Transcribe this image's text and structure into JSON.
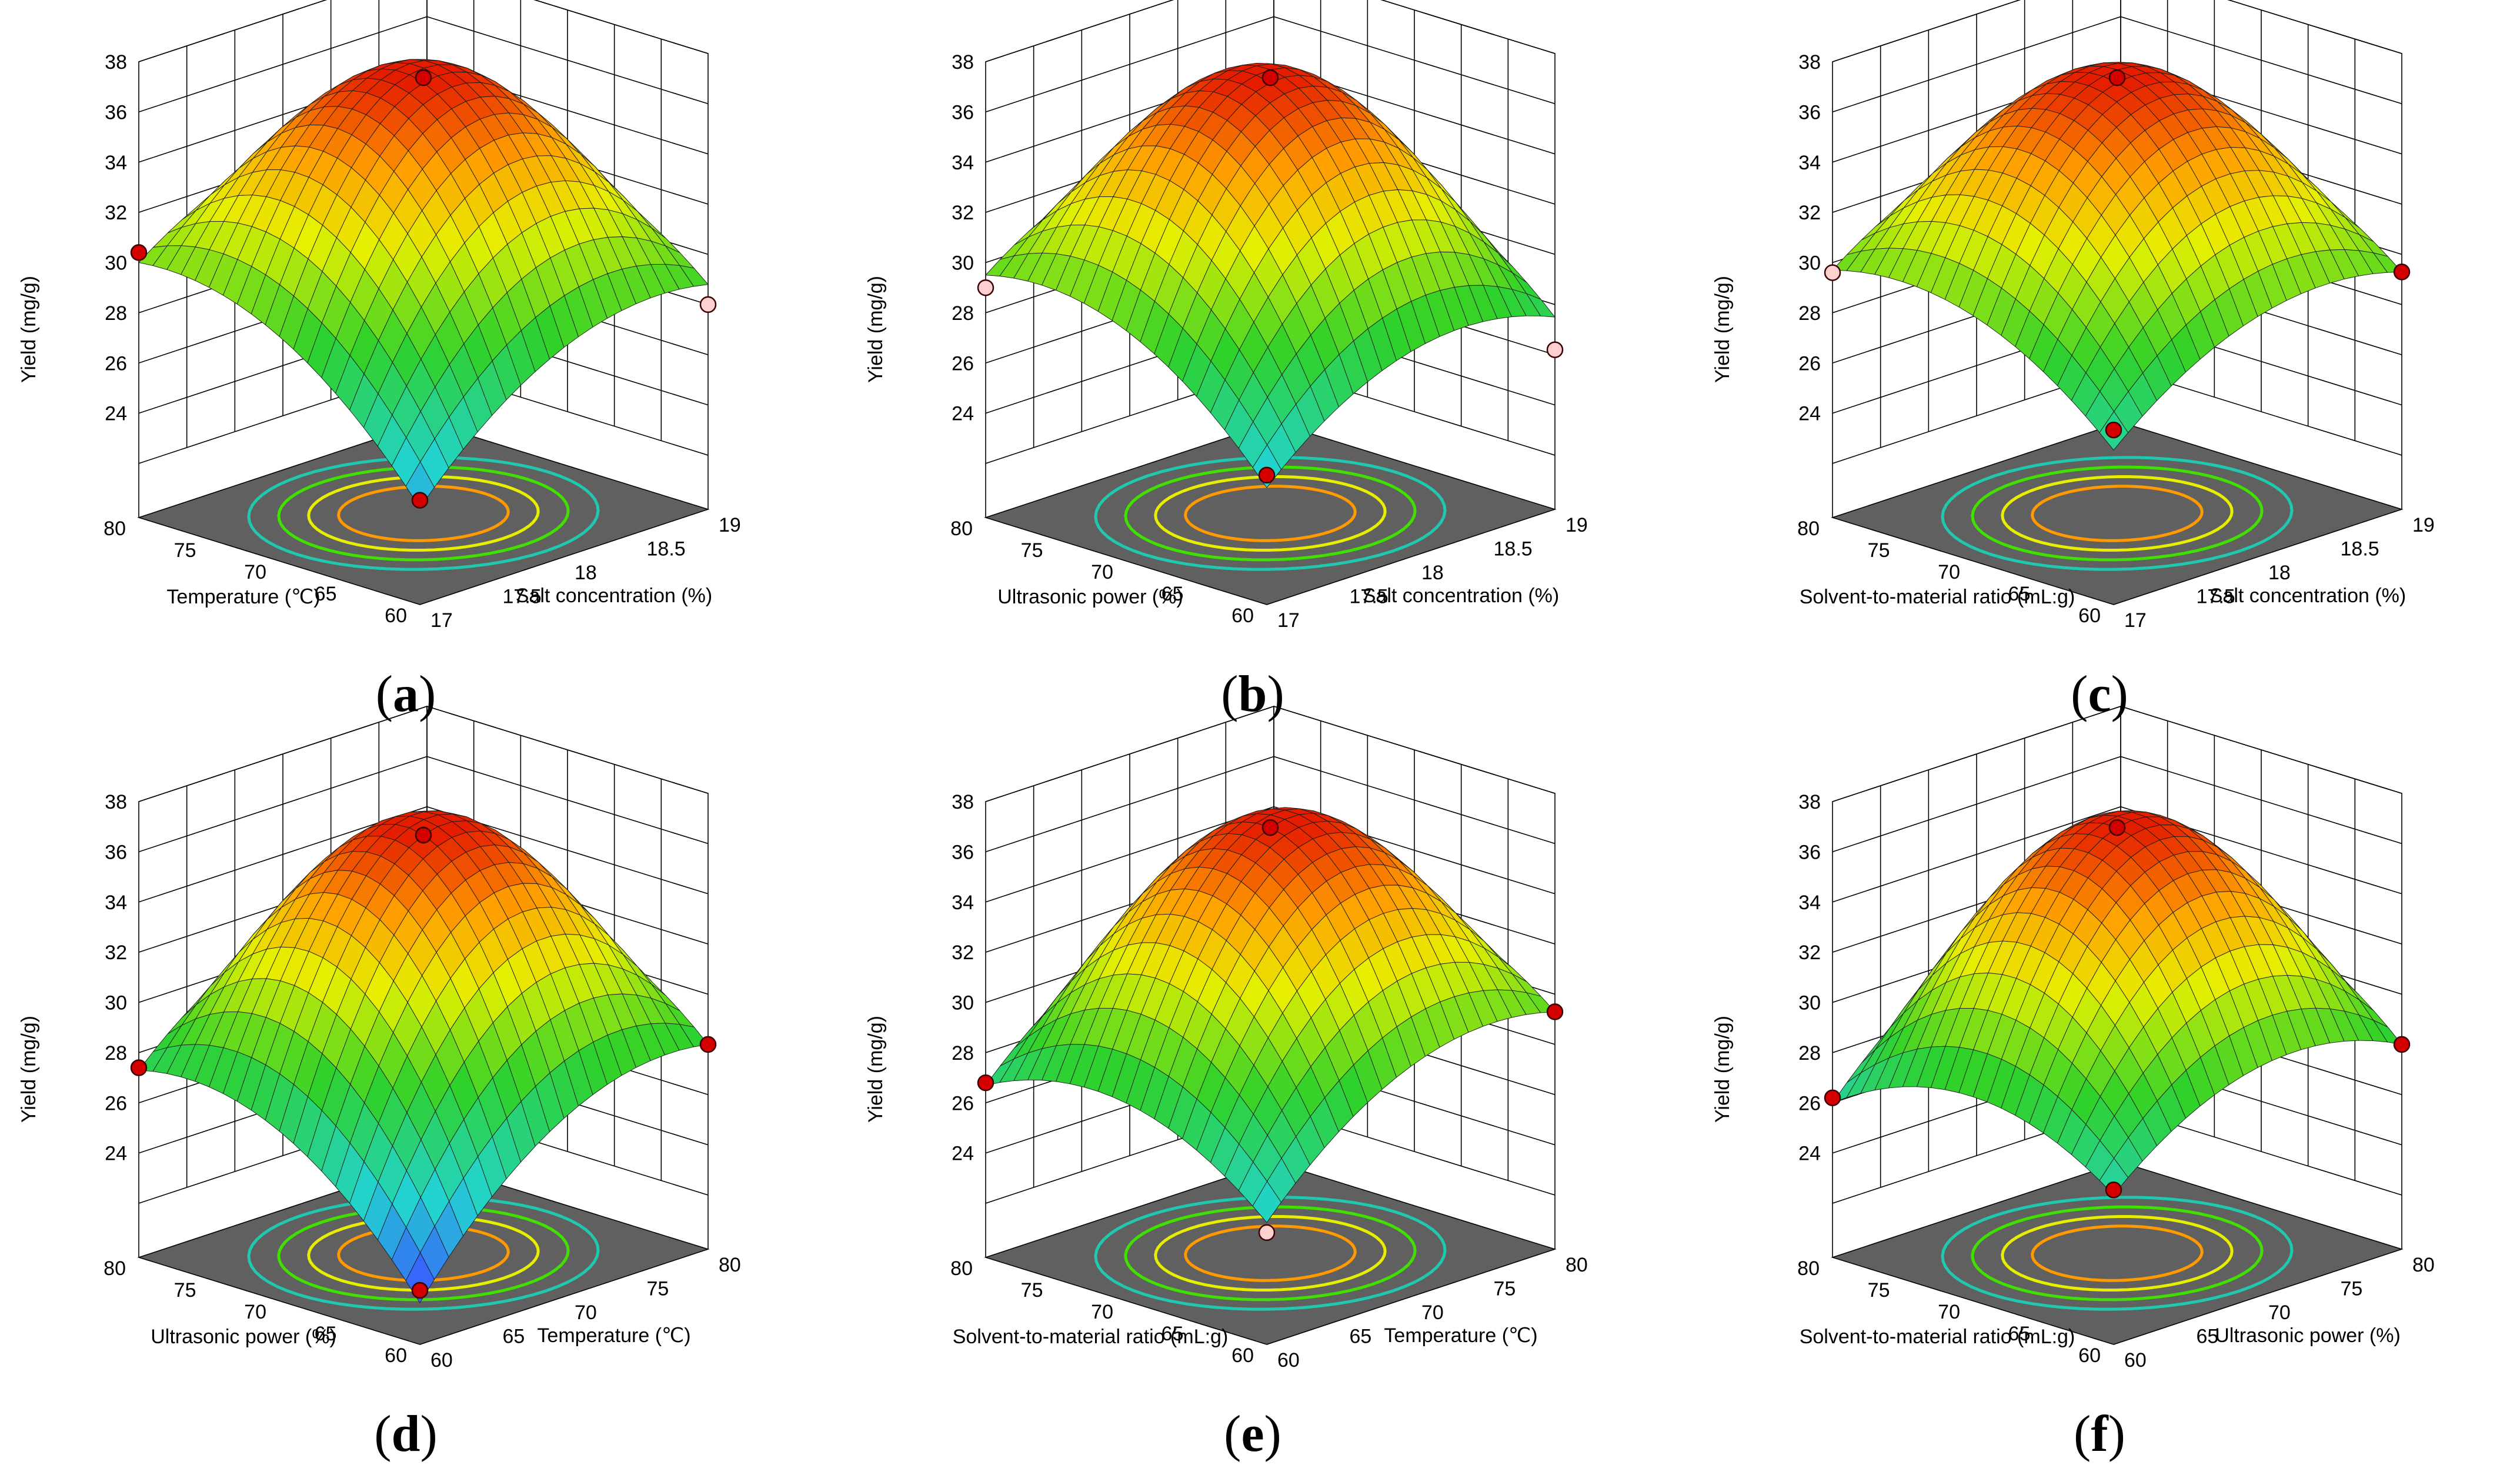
{
  "figure": {
    "panels": [
      {
        "id": "a",
        "caption": "a",
        "z_axis_label": "Yield (mg/g)",
        "x_axis_label": "Temperature (℃)",
        "y_axis_label": "Salt concentration (%)"
      },
      {
        "id": "b",
        "caption": "b",
        "z_axis_label": "Yield (mg/g)",
        "x_axis_label": "Ultrasonic power (%)",
        "y_axis_label": "Salt concentration (%)"
      },
      {
        "id": "c",
        "caption": "c",
        "z_axis_label": "Yield (mg/g)",
        "x_axis_label": "Solvent-to-material ratio (mL:g)",
        "y_axis_label": "Salt concentration (%)"
      },
      {
        "id": "d",
        "caption": "d",
        "z_axis_label": "Yield (mg/g)",
        "x_axis_label": "Ultrasonic power (%)",
        "y_axis_label": "Temperature (℃)"
      },
      {
        "id": "e",
        "caption": "e",
        "z_axis_label": "Yield (mg/g)",
        "x_axis_label": "Solvent-to-material ratio (mL:g)",
        "y_axis_label": "Temperature (℃)"
      },
      {
        "id": "f",
        "caption": "f",
        "z_axis_label": "Yield (mg/g)",
        "x_axis_label": "Solvent-to-material ratio (mL:g)",
        "y_axis_label": "Ultrasonic power (%)"
      }
    ]
  },
  "chart_data": [
    {
      "type": "surface3d",
      "panel": "a",
      "zlabel": "Yield (mg/g)",
      "zlim": [
        22,
        38
      ],
      "zticks": [
        "24",
        "26",
        "28",
        "30",
        "32",
        "34",
        "36",
        "38"
      ],
      "xlabel": "Temperature (℃)",
      "xlim": [
        60,
        80
      ],
      "xticks": [
        "60",
        "65",
        "70",
        "75",
        "80"
      ],
      "ylabel": "Salt concentration (%)",
      "ylim": [
        17,
        19
      ],
      "yticks": [
        "17",
        "17.5",
        "18",
        "18.5",
        "19"
      ],
      "surface_peak": 37.0,
      "corner_values": {
        "x_low_y_low": 23.7,
        "x_high_y_low": 30.0,
        "x_low_y_high": 28.8,
        "x_high_y_high": 31.0
      },
      "design_points": [
        {
          "x": 70,
          "y": 18,
          "z": 37.2
        },
        {
          "x": 80,
          "y": 17,
          "z": 30.4
        },
        {
          "x": 60,
          "y": 19,
          "z": 28.0
        },
        {
          "x": 60,
          "y": 17,
          "z": 24.0
        }
      ]
    },
    {
      "type": "surface3d",
      "panel": "b",
      "zlabel": "Yield (mg/g)",
      "zlim": [
        22,
        38
      ],
      "zticks": [
        "24",
        "26",
        "28",
        "30",
        "32",
        "34",
        "36",
        "38"
      ],
      "xlabel": "Ultrasonic power (%)",
      "xlim": [
        60,
        80
      ],
      "xticks": [
        "60",
        "65",
        "70",
        "75",
        "80"
      ],
      "ylabel": "Salt concentration (%)",
      "ylim": [
        17,
        19
      ],
      "yticks": [
        "17",
        "17.5",
        "18",
        "18.5",
        "19"
      ],
      "surface_peak": 37.0,
      "corner_values": {
        "x_low_y_low": 24.5,
        "x_high_y_low": 29.5,
        "x_low_y_high": 27.5,
        "x_high_y_high": 30.5
      },
      "design_points": [
        {
          "x": 70,
          "y": 18,
          "z": 37.2
        },
        {
          "x": 80,
          "y": 17,
          "z": 29.0
        },
        {
          "x": 60,
          "y": 19,
          "z": 26.2
        },
        {
          "x": 60,
          "y": 17,
          "z": 25.0
        }
      ]
    },
    {
      "type": "surface3d",
      "panel": "c",
      "zlabel": "Yield (mg/g)",
      "zlim": [
        22,
        38
      ],
      "zticks": [
        "24",
        "26",
        "28",
        "30",
        "32",
        "34",
        "36",
        "38"
      ],
      "xlabel": "Solvent-to-material ratio (mL:g)",
      "xlim": [
        60,
        80
      ],
      "xticks": [
        "60",
        "65",
        "70",
        "75",
        "80"
      ],
      "ylabel": "Salt concentration (%)",
      "ylim": [
        17,
        19
      ],
      "yticks": [
        "17",
        "17.5",
        "18",
        "18.5",
        "19"
      ],
      "surface_peak": 37.0,
      "corner_values": {
        "x_low_y_low": 26.0,
        "x_high_y_low": 29.7,
        "x_low_y_high": 29.3,
        "x_high_y_high": 31.5
      },
      "design_points": [
        {
          "x": 70,
          "y": 18,
          "z": 37.2
        },
        {
          "x": 80,
          "y": 17,
          "z": 29.6
        },
        {
          "x": 60,
          "y": 19,
          "z": 29.3
        },
        {
          "x": 60,
          "y": 17,
          "z": 26.8
        }
      ]
    },
    {
      "type": "surface3d",
      "panel": "d",
      "zlabel": "Yield (mg/g)",
      "zlim": [
        22,
        38
      ],
      "zticks": [
        "24",
        "26",
        "28",
        "30",
        "32",
        "34",
        "36",
        "38"
      ],
      "xlabel": "Ultrasonic power (%)",
      "xlim": [
        60,
        80
      ],
      "xticks": [
        "60",
        "65",
        "70",
        "75",
        "80"
      ],
      "ylabel": "Temperature (℃)",
      "ylim": [
        60,
        80
      ],
      "yticks": [
        "60",
        "65",
        "70",
        "75",
        "80"
      ],
      "surface_peak": 36.5,
      "corner_values": {
        "x_low_y_low": 21.5,
        "x_high_y_low": 27.3,
        "x_low_y_high": 28.0,
        "x_high_y_high": 30.0
      },
      "design_points": [
        {
          "x": 70,
          "y": 70,
          "z": 36.5
        },
        {
          "x": 80,
          "y": 60,
          "z": 27.4
        },
        {
          "x": 60,
          "y": 80,
          "z": 28.0
        },
        {
          "x": 60,
          "y": 60,
          "z": 22.0
        }
      ]
    },
    {
      "type": "surface3d",
      "panel": "e",
      "zlabel": "Yield (mg/g)",
      "zlim": [
        22,
        38
      ],
      "zticks": [
        "24",
        "26",
        "28",
        "30",
        "32",
        "34",
        "36",
        "38"
      ],
      "xlabel": "Solvent-to-material ratio (mL:g)",
      "xlim": [
        60,
        80
      ],
      "xticks": [
        "60",
        "65",
        "70",
        "75",
        "80"
      ],
      "ylabel": "Temperature (℃)",
      "ylim": [
        60,
        80
      ],
      "yticks": [
        "60",
        "65",
        "70",
        "75",
        "80"
      ],
      "surface_peak": 36.8,
      "corner_values": {
        "x_low_y_low": 24.7,
        "x_high_y_low": 26.7,
        "x_low_y_high": 29.3,
        "x_high_y_high": 30.5
      },
      "design_points": [
        {
          "x": 70,
          "y": 70,
          "z": 36.8
        },
        {
          "x": 80,
          "y": 60,
          "z": 26.8
        },
        {
          "x": 60,
          "y": 80,
          "z": 29.3
        },
        {
          "x": 60,
          "y": 60,
          "z": 24.3
        }
      ]
    },
    {
      "type": "surface3d",
      "panel": "f",
      "zlabel": "Yield (mg/g)",
      "zlim": [
        22,
        38
      ],
      "zticks": [
        "24",
        "26",
        "28",
        "30",
        "32",
        "34",
        "36",
        "38"
      ],
      "xlabel": "Solvent-to-material ratio (mL:g)",
      "xlim": [
        60,
        80
      ],
      "xticks": [
        "60",
        "65",
        "70",
        "75",
        "80"
      ],
      "ylabel": "Ultrasonic power (%)",
      "ylim": [
        60,
        80
      ],
      "yticks": [
        "60",
        "65",
        "70",
        "75",
        "80"
      ],
      "surface_peak": 36.8,
      "corner_values": {
        "x_low_y_low": 25.8,
        "x_high_y_low": 26.0,
        "x_low_y_high": 28.0,
        "x_high_y_high": 30.5
      },
      "design_points": [
        {
          "x": 70,
          "y": 70,
          "z": 36.8
        },
        {
          "x": 80,
          "y": 60,
          "z": 26.2
        },
        {
          "x": 60,
          "y": 80,
          "z": 28.0
        },
        {
          "x": 60,
          "y": 60,
          "z": 26.0
        }
      ]
    }
  ],
  "colors": {
    "surface_low": "#3a5bff",
    "surface_mid_low": "#22d3d0",
    "surface_mid": "#2fd12a",
    "surface_mid_high": "#e6f000",
    "surface_high_mid": "#ffa000",
    "surface_high": "#e41c00",
    "floor": "#606060",
    "grid": "#000000",
    "point_fill": "#d40000",
    "point_light": "#ffd0d0"
  }
}
